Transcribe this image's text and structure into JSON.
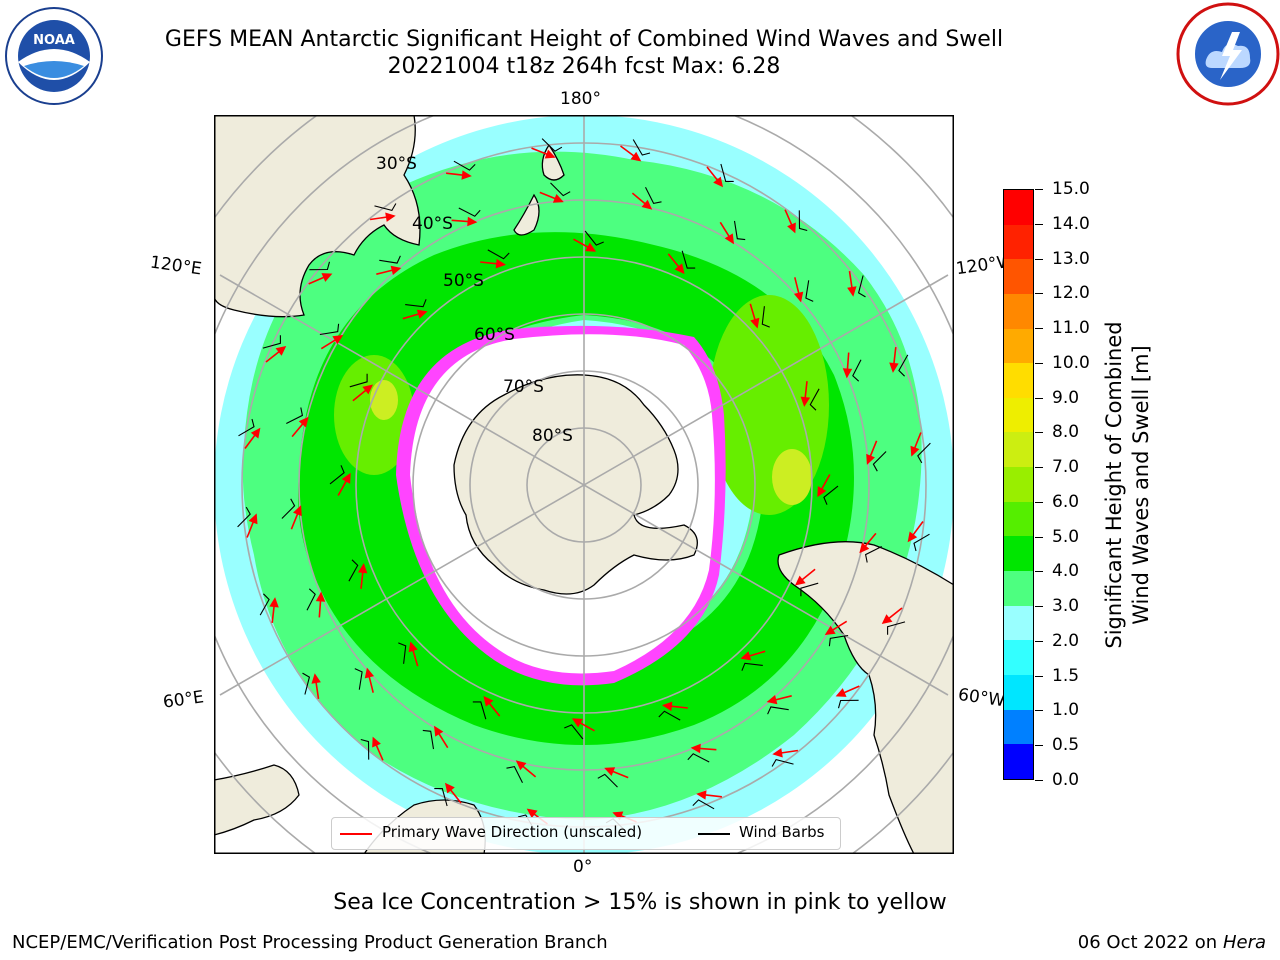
{
  "title_line1": "GEFS MEAN Antarctic Significant Height of Combined Wind Waves and Swell",
  "title_line2": "20221004 t18z 264h fcst   Max: 6.28",
  "map": {
    "lon_labels": {
      "top": "180°",
      "bottom": "0°",
      "upper_left": "120°E",
      "lower_left": "60°E",
      "upper_right": "120°W",
      "lower_right": "60°W"
    },
    "lat_labels": [
      "30°S",
      "40°S",
      "50°S",
      "60°S",
      "70°S",
      "80°S"
    ],
    "colors": {
      "ocean_low": "#99ffff",
      "wave_3to4": "#4dff80",
      "wave_4to5": "#00e600",
      "wave_5to6": "#66ee00",
      "wave_6to7": "#ccee22",
      "land": "#efecdc",
      "ice": "#ff44ff",
      "arrow": "#ff0000"
    }
  },
  "colorbar": {
    "title_line1": "Significant Height of Combined",
    "title_line2": "Wind Waves and Swell [m]",
    "ticks": [
      "0.0",
      "0.5",
      "1.0",
      "1.5",
      "2.0",
      "3.0",
      "4.0",
      "5.0",
      "6.0",
      "7.0",
      "8.0",
      "9.0",
      "10.0",
      "11.0",
      "12.0",
      "13.0",
      "14.0",
      "15.0"
    ],
    "colors": [
      "#0000ff",
      "#0080ff",
      "#00e6ff",
      "#33ffff",
      "#99ffff",
      "#4dff80",
      "#00e600",
      "#55ee00",
      "#99ee00",
      "#ccee11",
      "#eeee00",
      "#ffdd00",
      "#ffaa00",
      "#ff8800",
      "#ff5500",
      "#ff2200",
      "#ff0000"
    ]
  },
  "legend": {
    "wave_label": "Primary Wave Direction (unscaled)",
    "barb_label": "Wind Barbs"
  },
  "footer_note": "Sea Ice Concentration > 15% is shown in pink to yellow",
  "footer_left": "NCEP/EMC/Verification Post Processing Product Generation Branch",
  "footer_right_date": "06 Oct 2022 on",
  "footer_right_host": "Hera"
}
